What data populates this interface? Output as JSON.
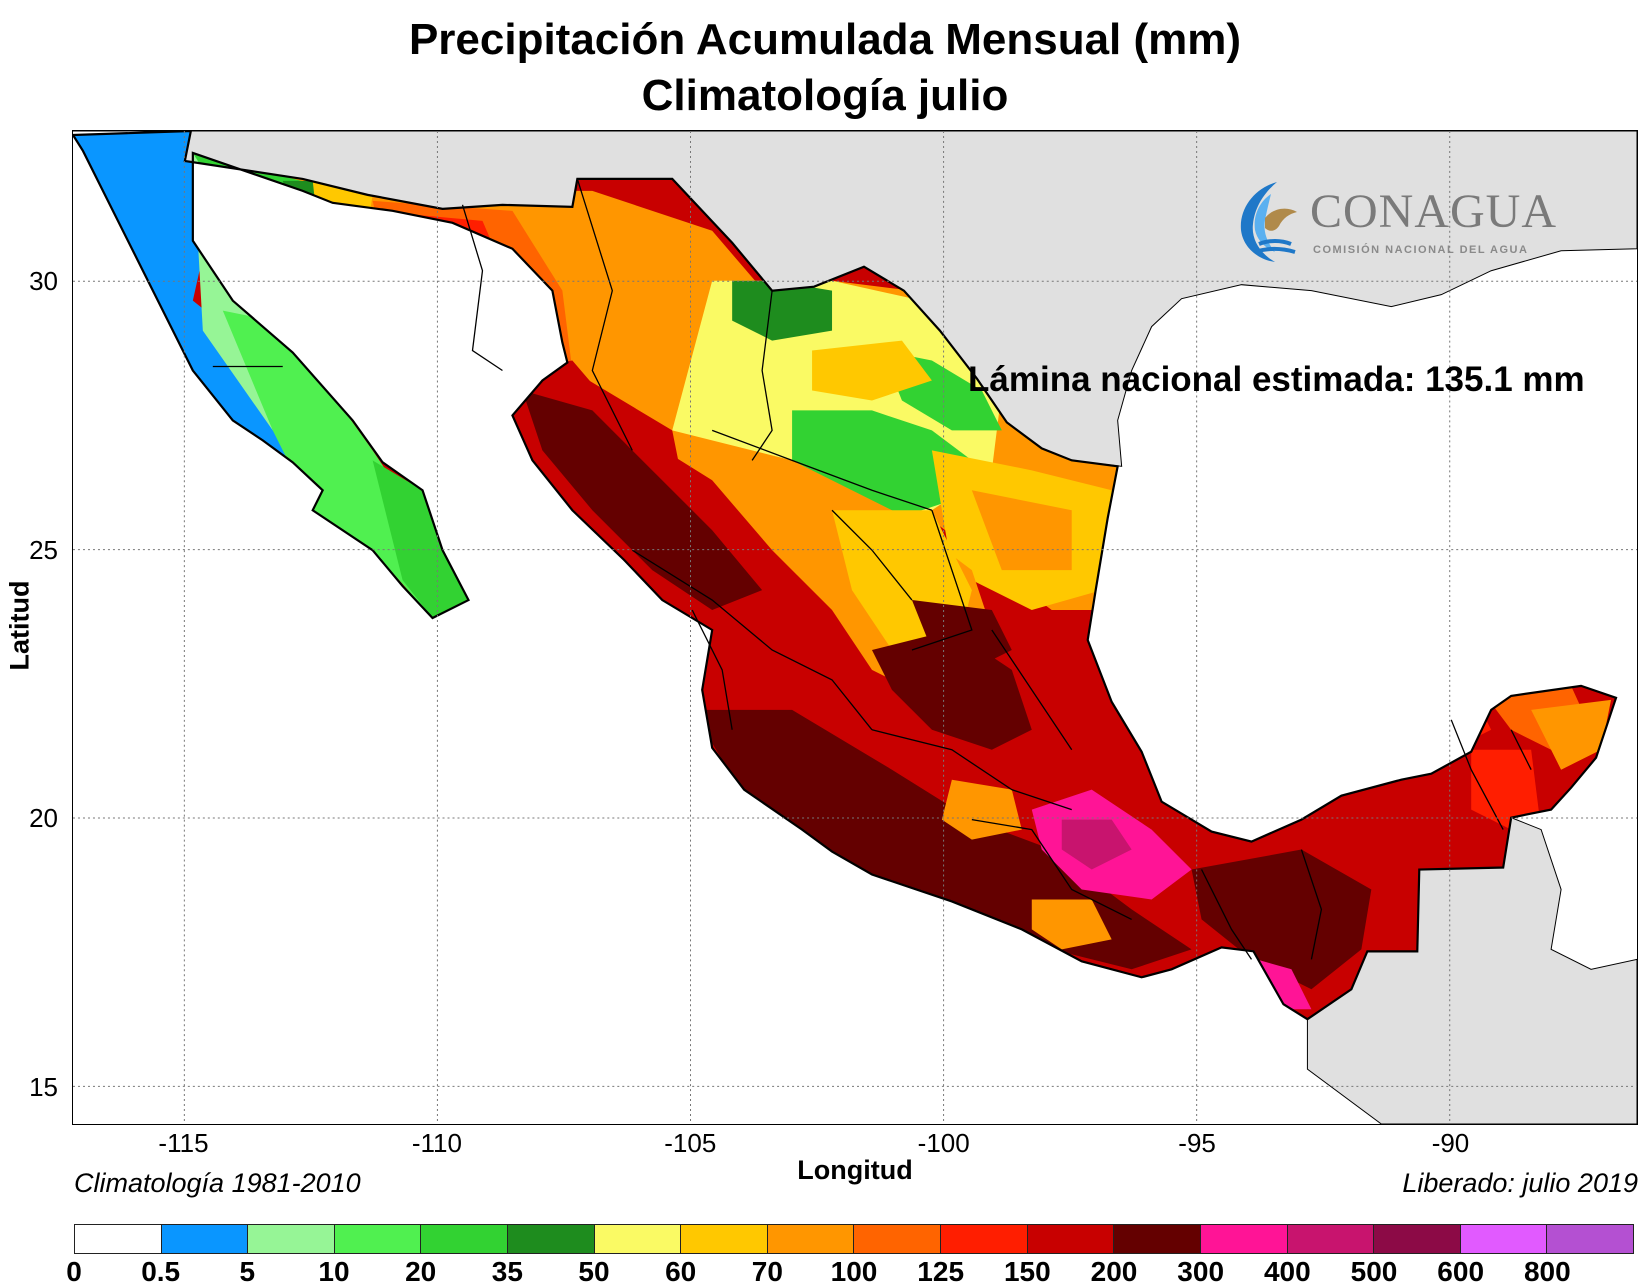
{
  "title_line1": "Precipitación Acumulada Mensual (mm)",
  "title_line2": "Climatología julio",
  "axes": {
    "xlabel": "Longitud",
    "ylabel": "Latitud",
    "xticks": [
      "-115",
      "-110",
      "-105",
      "-100",
      "-95",
      "-90"
    ],
    "yticks": [
      "30",
      "25",
      "20",
      "15"
    ],
    "lon_range": [
      -117.2,
      -86.3
    ],
    "lat_range": [
      14.3,
      32.8
    ],
    "grid": true
  },
  "annotation": "Lámina nacional estimada: 135.1 mm",
  "footnote_left": "Climatología 1981-2010",
  "footnote_right": "Liberado: julio 2019",
  "logo": {
    "name": "CONAGUA",
    "subtitle": "COMISIÓN NACIONAL DEL AGUA"
  },
  "legend": {
    "labels": [
      "0",
      "0.5",
      "5",
      "10",
      "20",
      "35",
      "50",
      "60",
      "70",
      "100",
      "125",
      "150",
      "200",
      "300",
      "400",
      "500",
      "600",
      "800"
    ],
    "colors": [
      "#ffffff",
      "#0a96ff",
      "#96f596",
      "#50f050",
      "#32d232",
      "#1e8c1e",
      "#fafa64",
      "#ffc800",
      "#ff9600",
      "#ff6400",
      "#ff1e00",
      "#c80000",
      "#640000",
      "#ff1496",
      "#c8146e",
      "#8c0a46",
      "#e15aff",
      "#b450d2"
    ]
  },
  "colors": {
    "land_outside": "#e0e0e0",
    "border": "#000000"
  }
}
